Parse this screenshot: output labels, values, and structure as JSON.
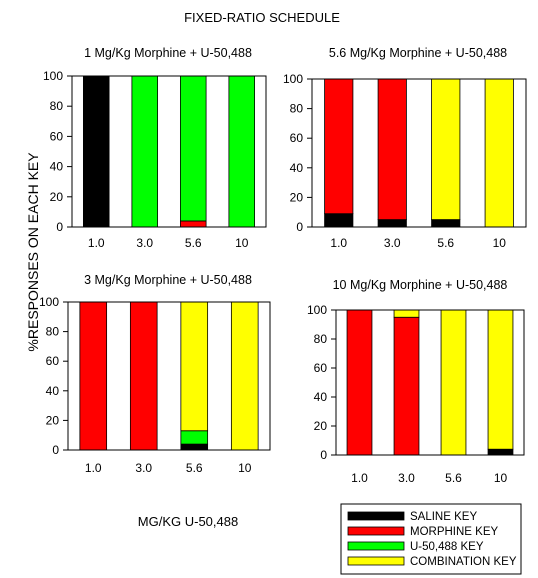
{
  "figure": {
    "title": "FIXED-RATIO SCHEDULE",
    "ylabel": "%RESPONSES ON EACH KEY",
    "xlabel": "MG/KG U-50,488"
  },
  "legend": {
    "position": "bottom-right",
    "items": [
      {
        "label": "SALINE KEY",
        "color": "#000000"
      },
      {
        "label": "MORPHINE KEY",
        "color": "#ff0000"
      },
      {
        "label": "U-50,488 KEY",
        "color": "#00ff00"
      },
      {
        "label": "COMBINATION KEY",
        "color": "#ffff00"
      }
    ]
  },
  "chart_data": [
    {
      "type": "bar",
      "stacked": true,
      "title": "1 Mg/Kg Morphine + U-50,488",
      "categories": [
        "1.0",
        "3.0",
        "5.6",
        "10"
      ],
      "ylim": [
        0,
        100
      ],
      "yticks": [
        "0",
        "20",
        "40",
        "60",
        "80",
        "100"
      ],
      "series": [
        {
          "name": "SALINE KEY",
          "color": "#000000",
          "values": [
            100,
            0,
            0,
            0
          ]
        },
        {
          "name": "MORPHINE KEY",
          "color": "#ff0000",
          "values": [
            0,
            0,
            4,
            0
          ]
        },
        {
          "name": "U-50,488 KEY",
          "color": "#00ff00",
          "values": [
            0,
            100,
            96,
            100
          ]
        },
        {
          "name": "COMBINATION KEY",
          "color": "#ffff00",
          "values": [
            0,
            0,
            0,
            0
          ]
        }
      ]
    },
    {
      "type": "bar",
      "stacked": true,
      "title": "5.6 Mg/Kg Morphine + U-50,488",
      "categories": [
        "1.0",
        "3.0",
        "5.6",
        "10"
      ],
      "ylim": [
        0,
        100
      ],
      "yticks": [
        "0",
        "20",
        "40",
        "60",
        "80",
        "100"
      ],
      "series": [
        {
          "name": "SALINE KEY",
          "color": "#000000",
          "values": [
            9,
            5,
            5,
            0
          ]
        },
        {
          "name": "MORPHINE KEY",
          "color": "#ff0000",
          "values": [
            91,
            95,
            0,
            0
          ]
        },
        {
          "name": "U-50,488 KEY",
          "color": "#00ff00",
          "values": [
            0,
            0,
            0,
            0
          ]
        },
        {
          "name": "COMBINATION KEY",
          "color": "#ffff00",
          "values": [
            0,
            0,
            95,
            100
          ]
        }
      ]
    },
    {
      "type": "bar",
      "stacked": true,
      "title": "3 Mg/Kg Morphine + U-50,488",
      "categories": [
        "1.0",
        "3.0",
        "5.6",
        "10"
      ],
      "ylim": [
        0,
        100
      ],
      "yticks": [
        "0",
        "20",
        "40",
        "60",
        "80",
        "100"
      ],
      "series": [
        {
          "name": "SALINE KEY",
          "color": "#000000",
          "values": [
            0,
            0,
            4,
            0
          ]
        },
        {
          "name": "MORPHINE KEY",
          "color": "#ff0000",
          "values": [
            100,
            100,
            0,
            0
          ]
        },
        {
          "name": "U-50,488 KEY",
          "color": "#00ff00",
          "values": [
            0,
            0,
            9,
            0
          ]
        },
        {
          "name": "COMBINATION KEY",
          "color": "#ffff00",
          "values": [
            0,
            0,
            87,
            100
          ]
        }
      ]
    },
    {
      "type": "bar",
      "stacked": true,
      "title": "10 Mg/Kg Morphine + U-50,488",
      "categories": [
        "1.0",
        "3.0",
        "5.6",
        "10"
      ],
      "ylim": [
        0,
        100
      ],
      "yticks": [
        "0",
        "20",
        "40",
        "60",
        "80",
        "100"
      ],
      "series": [
        {
          "name": "SALINE KEY",
          "color": "#000000",
          "values": [
            0,
            0,
            0,
            4
          ]
        },
        {
          "name": "MORPHINE KEY",
          "color": "#ff0000",
          "values": [
            100,
            95,
            0,
            0
          ]
        },
        {
          "name": "U-50,488 KEY",
          "color": "#00ff00",
          "values": [
            0,
            0,
            0,
            0
          ]
        },
        {
          "name": "COMBINATION KEY",
          "color": "#ffff00",
          "values": [
            0,
            5,
            100,
            96
          ]
        }
      ]
    }
  ]
}
